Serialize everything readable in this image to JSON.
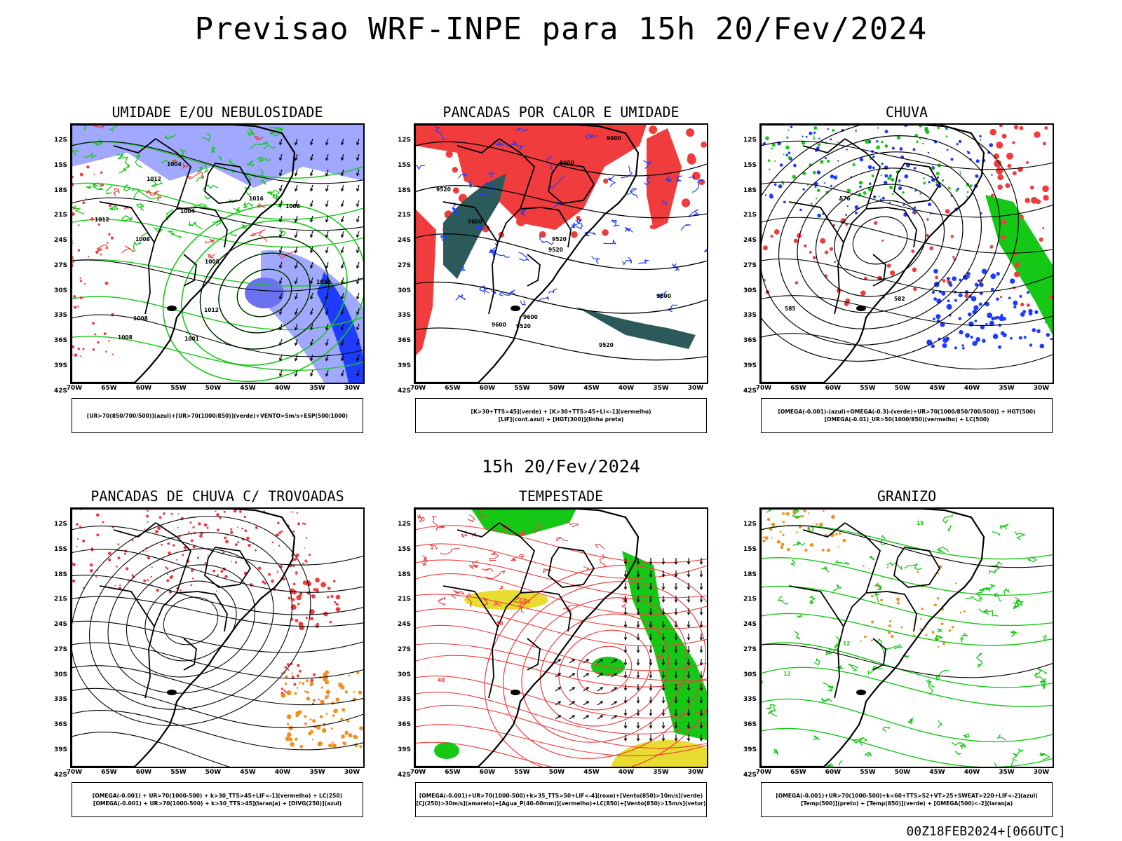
{
  "header": {
    "title": "Previsao WRF-INPE  para 15h 20/Fev/2024"
  },
  "middle": {
    "date": "15h 20/Fev/2024"
  },
  "footer": {
    "stamp": "00Z18FEB2024+[066UTC]"
  },
  "axes": {
    "lat": [
      "12S",
      "15S",
      "18S",
      "21S",
      "24S",
      "27S",
      "30S",
      "33S",
      "36S",
      "39S",
      "42S"
    ],
    "lon": [
      "70W",
      "65W",
      "60W",
      "55W",
      "50W",
      "45W",
      "40W",
      "35W",
      "30W"
    ]
  },
  "colors": {
    "red": "#f03c3c",
    "green": "#16c816",
    "blue": "#1e3cff",
    "lightblue": "#a0a8ff",
    "orange": "#f09020",
    "yellow": "#e8dc30",
    "darkteal": "#2c5a5a",
    "black": "#000000"
  },
  "panels": [
    {
      "title": "UMIDADE E/OU NEBULOSIDADE",
      "legend": [
        "[UR>70(850/700/500)](azul)+[UR>70(1000/850)](verde)+VENTO>5m/s+ESP(500/1000)"
      ],
      "labels": [
        "1012",
        "1008",
        "1004",
        "1001",
        "1008",
        "1004",
        "1008",
        "1008",
        "1012",
        "1016",
        "1012",
        "1012",
        "1008"
      ]
    },
    {
      "title": "PANCADAS POR CALOR E UMIDADE",
      "legend": [
        "[K>30+TTS>45](verde) + [K>30+TTS>45+LI<-1](vermelho)",
        "[LIF](cont.azul) + [HGT(300)](linha preta)"
      ],
      "labels": [
        "9600",
        "9600",
        "9600",
        "9600",
        "9520",
        "9520",
        "9600",
        "9600",
        "9520",
        "9520",
        "9520"
      ]
    },
    {
      "title": "CHUVA",
      "legend": [
        "[OMEGA(-0.001)-(azul)+OMEGA(-0.3)-(verde)+UR>70(1000/850/700/500)] + HGT(500)",
        "[OMEGA(-0.01)_UR>50(1000/850)(vermelho) + LC(500)"
      ],
      "labels": [
        "576",
        "582",
        "585"
      ]
    },
    {
      "title": "PANCADAS DE CHUVA C/ TROVOADAS",
      "legend": [
        "[OMEGA(-0.001) + UR>70(1000-500) + k>30_TTS>45+LIF<-1](vermelho) + LC(250)",
        "[OMEGA(-0.001) + UR>70(1000-500) + k>30_TTS>45](laranja) + [DIVG(250)](azul)"
      ],
      "labels": []
    },
    {
      "title": "TEMPESTADE",
      "legend": [
        "[OMEGA(-0.001)+UR>70(1000-500)+k>35_TTS>50+LIF<-4](roxo)+[Vento(850)>10m/s](verde)",
        "[CJ(250)>30m/s](amarelo)+[Agua_P(40-60mm)](vermelho)+LC(850)+[Vento(850)>15m/s](vetor)"
      ],
      "labels": [
        "40",
        "50",
        "40"
      ]
    },
    {
      "title": "GRANIZO",
      "legend": [
        "[OMEGA(-0.001)+UR>70(1000-500)+k<60+TTS>52+VT>25+SWEAT>220+LIF<-2](azul)",
        "[Temp(500)](preto) + [Temp(850)](verde) + [OMEGA(500)<-2](laranja)"
      ],
      "labels": [
        "12",
        "12",
        "12",
        "15"
      ]
    }
  ]
}
